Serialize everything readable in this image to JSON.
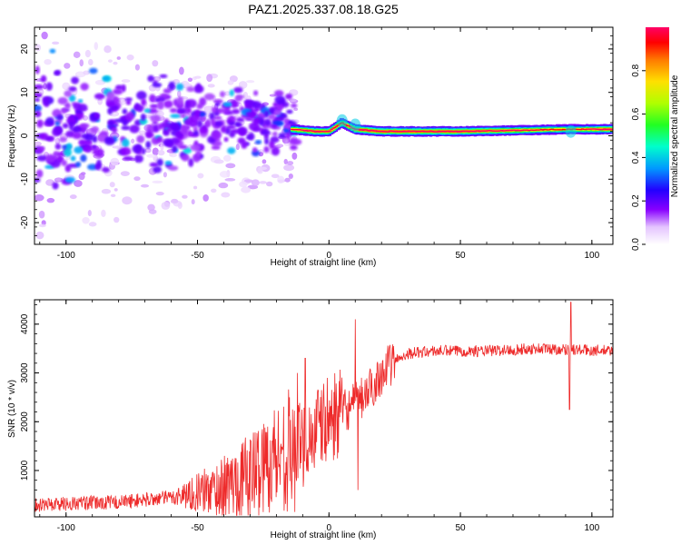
{
  "title": "PAZ1.2025.337.08.18.G25",
  "chart_data": [
    {
      "type": "heatmap",
      "title": "PAZ1.2025.337.08.18.G25",
      "xlabel": "Height of straight line (km)",
      "ylabel": "Frequency (Hz)",
      "xlim": [
        -112,
        108
      ],
      "ylim": [
        -25,
        25
      ],
      "xticks": [
        -100,
        -50,
        0,
        50,
        100
      ],
      "yticks": [
        -20,
        -10,
        0,
        10,
        20
      ],
      "xtick_labels": [
        "-100",
        "-50",
        "0",
        "50",
        "100"
      ],
      "ytick_labels": [
        "-20",
        "-10",
        "0",
        "10",
        "20"
      ],
      "colorbar": {
        "label": "Normalized spectral amplitude",
        "range": [
          0,
          1
        ],
        "ticks": [
          0.0,
          0.2,
          0.4,
          0.6,
          0.8
        ],
        "tick_labels": [
          "0.0",
          "0.2",
          "0.4",
          "0.6",
          "0.8"
        ]
      },
      "ridge": {
        "description_points": [
          {
            "x": -14,
            "freq": 1.5,
            "amp": 0.7
          },
          {
            "x": -5,
            "freq": 1.0,
            "amp": 0.9
          },
          {
            "x": 0,
            "freq": 1.0,
            "amp": 0.85
          },
          {
            "x": 5,
            "freq": 3.0,
            "amp": 0.6
          },
          {
            "x": 10,
            "freq": 1.5,
            "amp": 0.9
          },
          {
            "x": 20,
            "freq": 1.0,
            "amp": 0.95
          },
          {
            "x": 50,
            "freq": 1.0,
            "amp": 0.95
          },
          {
            "x": 92,
            "freq": 1.5,
            "amp": 0.6
          },
          {
            "x": 108,
            "freq": 1.5,
            "amp": 0.95
          }
        ]
      }
    },
    {
      "type": "line",
      "xlabel": "Height of straight line (km)",
      "ylabel": "SNR (10 * v/v)",
      "xlim": [
        -112,
        108
      ],
      "ylim": [
        50,
        4500
      ],
      "xticks": [
        -100,
        -50,
        0,
        50,
        100
      ],
      "yticks": [
        1000,
        2000,
        3000,
        4000
      ],
      "xtick_labels": [
        "-100",
        "-50",
        "0",
        "50",
        "100"
      ],
      "ytick_labels": [
        "1000",
        "2000",
        "3000",
        "4000"
      ],
      "color": "#ee2a2a",
      "trend_points": [
        {
          "x": -112,
          "y": 300
        },
        {
          "x": -80,
          "y": 350
        },
        {
          "x": -60,
          "y": 450
        },
        {
          "x": -40,
          "y": 650
        },
        {
          "x": -30,
          "y": 900
        },
        {
          "x": -20,
          "y": 1300
        },
        {
          "x": -14,
          "y": 1450
        },
        {
          "x": -10,
          "y": 1550
        },
        {
          "x": -5,
          "y": 1800
        },
        {
          "x": 0,
          "y": 2050
        },
        {
          "x": 5,
          "y": 2200
        },
        {
          "x": 10,
          "y": 2350
        },
        {
          "x": 15,
          "y": 2600
        },
        {
          "x": 20,
          "y": 3000
        },
        {
          "x": 25,
          "y": 3250
        },
        {
          "x": 30,
          "y": 3400
        },
        {
          "x": 40,
          "y": 3450
        },
        {
          "x": 60,
          "y": 3450
        },
        {
          "x": 80,
          "y": 3500
        },
        {
          "x": 108,
          "y": 3450
        }
      ],
      "spikes": [
        {
          "x": -15,
          "y": 2500
        },
        {
          "x": -12,
          "y": 3000
        },
        {
          "x": -9,
          "y": 3300
        },
        {
          "x": -13,
          "y": 150
        },
        {
          "x": 10,
          "y": 4100
        },
        {
          "x": 11,
          "y": 600
        },
        {
          "x": 92,
          "y": 4450
        },
        {
          "x": 91.5,
          "y": 2250
        }
      ]
    }
  ]
}
